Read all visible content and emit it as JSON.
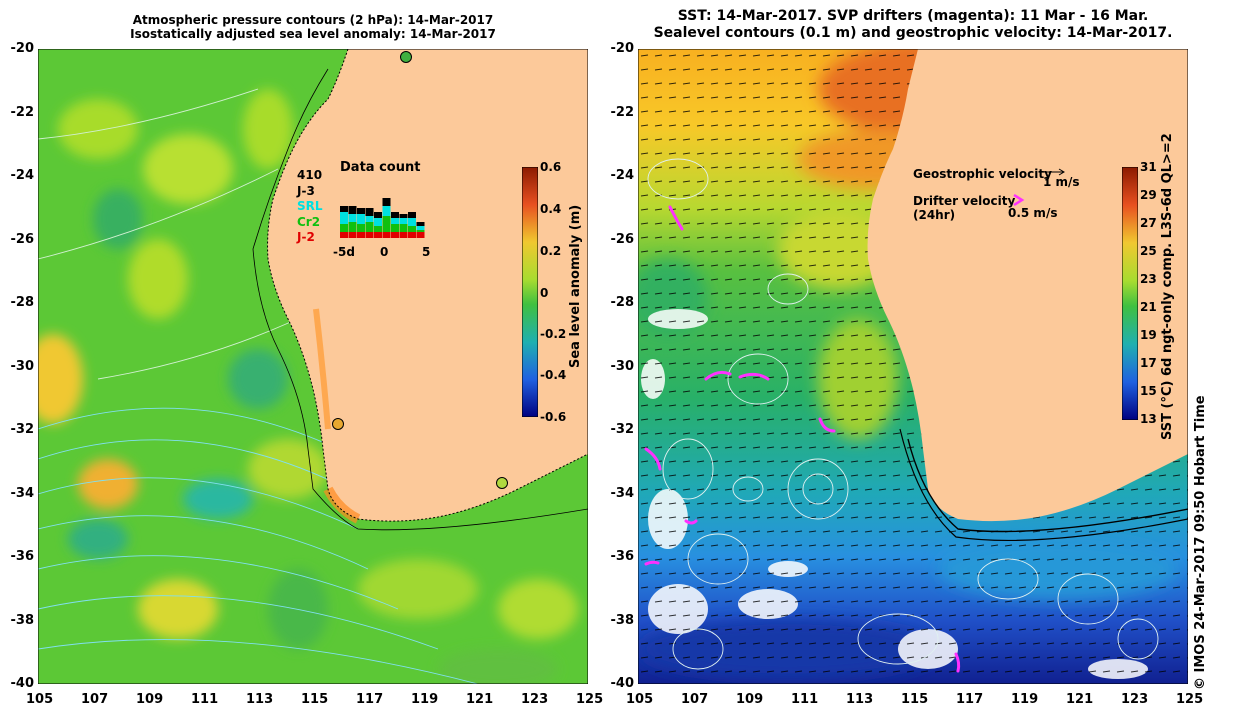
{
  "left_panel": {
    "title_line1": "Atmospheric pressure contours (2 hPa): 14-Mar-2017",
    "title_line2": "Isostatically adjusted sea level anomaly: 14-Mar-2017",
    "colorbar_label": "Sea level anomaly (m)",
    "colorbar_ticks": [
      "0.6",
      "0.4",
      "0.2",
      "0",
      "-0.2",
      "-0.4",
      "-0.6"
    ],
    "data_count": {
      "title": "Data count",
      "total": "410",
      "legend": [
        {
          "name": "J-3",
          "color": "#000000"
        },
        {
          "name": "SRL",
          "color": "#00e0e0"
        },
        {
          "name": "Cr2",
          "color": "#10c010"
        },
        {
          "name": "J-2",
          "color": "#e00000"
        }
      ],
      "x_ticks": [
        "-5d",
        "0",
        "5"
      ]
    }
  },
  "right_panel": {
    "title_line1": "SST: 14-Mar-2017. SVP drifters (magenta): 11 Mar - 16 Mar.",
    "title_line2": "Sealevel contours (0.1 m) and geostrophic velocity: 14-Mar-2017.",
    "geostrophic_label": "Geostrophic velocity",
    "geostrophic_scale": "1 m/s",
    "drifter_label_1": "Drifter velocity",
    "drifter_label_2": "(24hr)",
    "drifter_scale": "0.5 m/s",
    "colorbar_label": "SST (°C) 6d ngt-only comp. L3S-6d QL>=2",
    "colorbar_ticks": [
      "31",
      "29",
      "27",
      "25",
      "23",
      "21",
      "19",
      "17",
      "15",
      "13"
    ]
  },
  "credit": "© IMOS 24-Mar-2017 09:50 Hobart Time",
  "axes": {
    "x_ticks": [
      "105",
      "107",
      "109",
      "111",
      "113",
      "115",
      "117",
      "119",
      "121",
      "123",
      "125"
    ],
    "y_ticks": [
      "-20",
      "-22",
      "-24",
      "-26",
      "-28",
      "-30",
      "-32",
      "-34",
      "-36",
      "-38",
      "-40"
    ]
  },
  "colors": {
    "land": "#fcc99a",
    "sla_base": "#4ec83a",
    "magenta": "#ff30ff"
  }
}
